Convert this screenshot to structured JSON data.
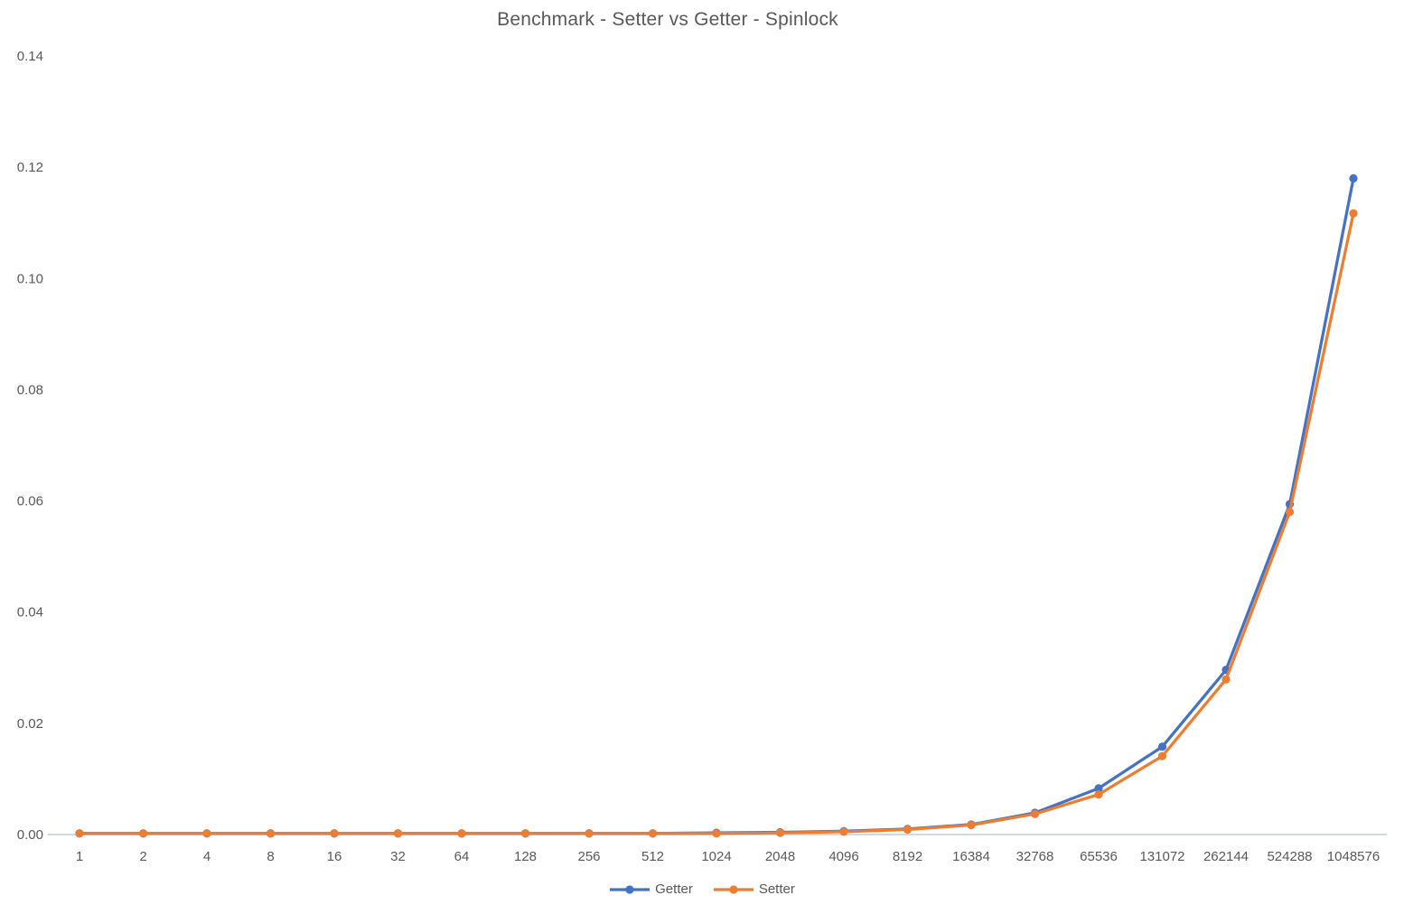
{
  "title": "Benchmark - Setter vs Getter - Spinlock",
  "chart_data": {
    "type": "line",
    "title": "Benchmark - Setter vs Getter - Spinlock",
    "xlabel": "",
    "ylabel": "",
    "categories": [
      "1",
      "2",
      "4",
      "8",
      "16",
      "32",
      "64",
      "128",
      "256",
      "512",
      "1024",
      "2048",
      "4096",
      "8192",
      "16384",
      "32768",
      "65536",
      "131072",
      "262144",
      "524288",
      "1048576"
    ],
    "series": [
      {
        "name": "Getter",
        "color": "#4472C4",
        "values": [
          0.0002,
          0.0002,
          0.0002,
          0.0002,
          0.0002,
          0.0002,
          0.0002,
          0.0002,
          0.0002,
          0.0002,
          0.0003,
          0.0004,
          0.0006,
          0.001,
          0.0018,
          0.0039,
          0.0083,
          0.0158,
          0.0296,
          0.0594,
          0.118
        ]
      },
      {
        "name": "Setter",
        "color": "#ED7D31",
        "values": [
          0.0002,
          0.0002,
          0.0002,
          0.0002,
          0.0002,
          0.0002,
          0.0002,
          0.0002,
          0.0002,
          0.0002,
          0.0002,
          0.0003,
          0.0005,
          0.0009,
          0.0017,
          0.0037,
          0.0072,
          0.0141,
          0.0279,
          0.058,
          0.1117
        ]
      }
    ],
    "ylim": [
      0,
      0.14
    ],
    "yticks": [
      0.0,
      0.02,
      0.04,
      0.06,
      0.08,
      0.1,
      0.12,
      0.14
    ],
    "ytick_labels": [
      "0.00",
      "0.02",
      "0.04",
      "0.06",
      "0.08",
      "0.10",
      "0.12",
      "0.14"
    ],
    "grid": false,
    "legend_position": "bottom",
    "marker": "circle",
    "axis_color": "#CFD9E2",
    "text_color": "#595959"
  }
}
